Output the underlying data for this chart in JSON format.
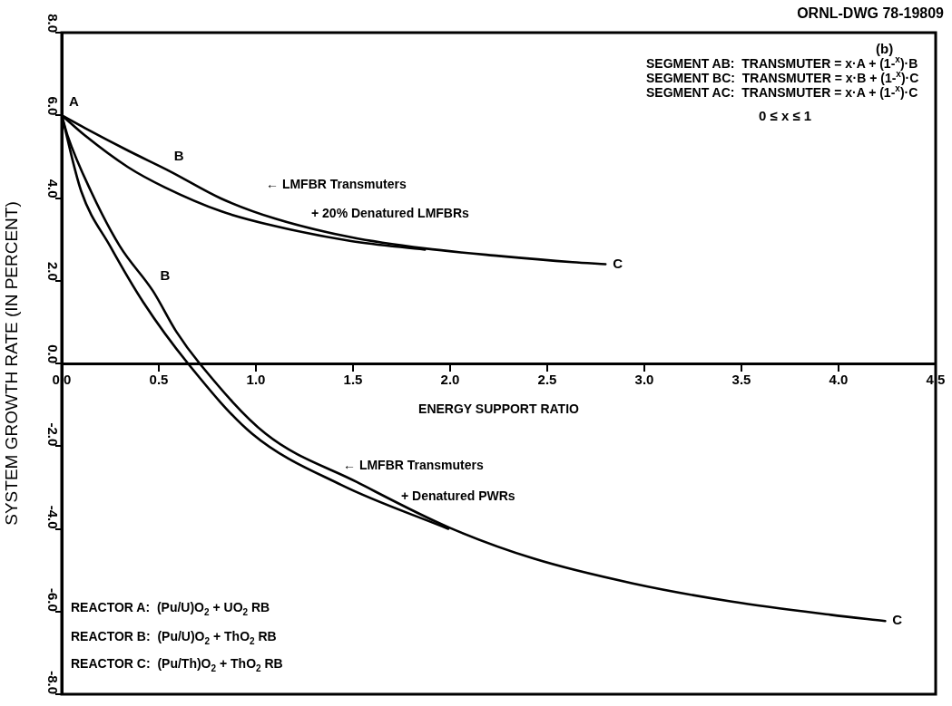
{
  "chart_data": {
    "type": "line",
    "xlabel": "ENERGY SUPPORT RATIO",
    "ylabel": "SYSTEM GROWTH RATE (IN PERCENT)",
    "xlim": [
      0,
      4.5
    ],
    "ylim": [
      -8,
      8
    ],
    "xticks": [
      {
        "value": 0,
        "label": "0.0"
      },
      0.5,
      {
        "value": 1,
        "label": "1.0"
      },
      1.5,
      {
        "value": 2,
        "label": "2.0"
      },
      2.5,
      {
        "value": 3,
        "label": "3.0"
      },
      3.5,
      {
        "value": 4,
        "label": "4.0"
      },
      4.5
    ],
    "yticks": [
      {
        "value": -8,
        "label": "-8.0"
      },
      {
        "value": -6,
        "label": "-6.0"
      },
      {
        "value": -4,
        "label": "-4.0"
      },
      {
        "value": -2,
        "label": "-2.0"
      },
      {
        "value": 0,
        "label": "0.0"
      },
      {
        "value": 2,
        "label": "2.0"
      },
      {
        "value": 4,
        "label": "4.0"
      },
      {
        "value": 6,
        "label": "6.0"
      },
      {
        "value": 8,
        "label": "8.0"
      }
    ],
    "grid": false,
    "legend": false,
    "marker": "none",
    "line_style": "solid",
    "series": [
      {
        "color": "#000000",
        "x": [
          0,
          0.12,
          0.34,
          0.56,
          0.82,
          1.1,
          1.49,
          1.87,
          2.25,
          2.63,
          2.8
        ],
        "values": [
          6.0,
          5.69,
          5.15,
          4.64,
          3.99,
          3.5,
          3.05,
          2.78,
          2.6,
          2.45,
          2.4
        ]
      },
      {
        "color": "#000000",
        "x": [
          0,
          0.12,
          0.34,
          0.53,
          0.82,
          1.1,
          1.49,
          1.87
        ],
        "values": [
          6.0,
          5.51,
          4.75,
          4.26,
          3.68,
          3.32,
          2.96,
          2.75
        ]
      },
      {
        "color": "#000000",
        "x": [
          0,
          0.03,
          0.15,
          0.3,
          0.47,
          0.59,
          0.71,
          1.05,
          1.52,
          1.99,
          2.43,
          2.94,
          3.45,
          3.96,
          4.24
        ],
        "values": [
          6.0,
          5.51,
          4.17,
          2.83,
          1.75,
          0.77,
          0,
          -1.7,
          -2.87,
          -3.96,
          -4.72,
          -5.32,
          -5.76,
          -6.08,
          -6.23
        ]
      },
      {
        "color": "#000000",
        "x": [
          0,
          0.1,
          0.25,
          0.42,
          0.65,
          0.98,
          1.44,
          1.99
        ],
        "values": [
          6.0,
          4.17,
          2.83,
          1.48,
          0,
          -1.7,
          -2.94,
          -4.0
        ]
      }
    ],
    "annotations": [
      "ORNL-DWG 78-19809",
      "(b)",
      "SEGMENT AB:  TRANSMUTER = x·A + (1-$^{x}$)·B",
      "SEGMENT BC:  TRANSMUTER = x·B + (1-$^{x}$)·C",
      "SEGMENT AC:  TRANSMUTER = x·A + (1-$^{x}$)·C",
      "0 ≤ x ≤ 1",
      "← LMFBR Transmuters",
      "+ 20% Denatured LMFBRs",
      "← LMFBR Transmuters",
      "+ Denatured PWRs",
      "REACTOR A:  (Pu/U)O$_{2}$ + UO$_{2}$ RB",
      "REACTOR B:  (Pu/U)O$_{2}$ + ThO$_{2}$ RB",
      "REACTOR C:  (Pu/Th)O$_{2}$ + ThO$_{2}$ RB",
      {
        "text": "A",
        "x": 0,
        "y": 6.0
      },
      {
        "text": "B",
        "x": 0.56,
        "y": 4.64
      },
      {
        "text": "C",
        "x": 2.8,
        "y": 2.4
      },
      {
        "text": "B",
        "x": 0.47,
        "y": 1.75
      },
      {
        "text": "C",
        "x": 4.24,
        "y": -6.23
      }
    ]
  }
}
